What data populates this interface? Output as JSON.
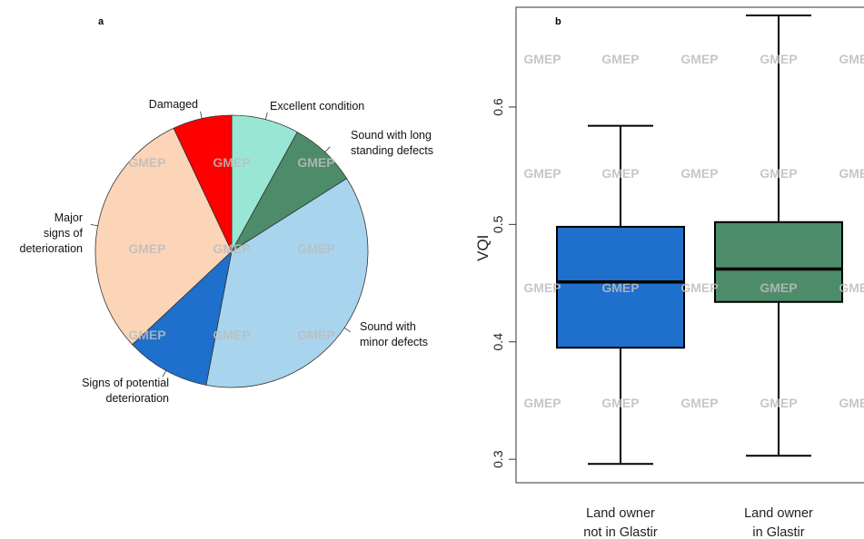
{
  "chart_data": [
    {
      "panel": "a",
      "type": "pie",
      "slices": [
        {
          "label": "Excellent condition",
          "lines": [
            "Excellent condition"
          ],
          "value": 8,
          "color": "#99e6d4"
        },
        {
          "label": "Sound with long standing defects",
          "lines": [
            "Sound with long",
            "standing defects"
          ],
          "value": 8,
          "color": "#4d8c6a"
        },
        {
          "label": "Sound with minor defects",
          "lines": [
            "Sound with",
            "minor defects"
          ],
          "value": 37,
          "color": "#a8d4ee"
        },
        {
          "label": "Signs of potential deterioration",
          "lines": [
            "Signs of potential",
            "deterioration"
          ],
          "value": 10,
          "color": "#1f6fcc"
        },
        {
          "label": "Major signs of deterioration",
          "lines": [
            "Major",
            "signs of",
            "deterioration"
          ],
          "value": 30,
          "color": "#fcd5b8"
        },
        {
          "label": "Damaged",
          "lines": [
            "Damaged"
          ],
          "value": 7,
          "color": "#ff0000"
        }
      ]
    },
    {
      "panel": "b",
      "type": "box",
      "ylabel": "VQI",
      "ylim": [
        0.28,
        0.685
      ],
      "yticks": [
        "0.3",
        "0.4",
        "0.5",
        "0.6"
      ],
      "groups": [
        {
          "label_lines": [
            "Land owner",
            "not in Glastir"
          ],
          "color": "#1f6fcc",
          "min": 0.296,
          "q1": 0.395,
          "median": 0.451,
          "q3": 0.498,
          "max": 0.584
        },
        {
          "label_lines": [
            "Land owner",
            "in Glastir"
          ],
          "color": "#4d8c6a",
          "min": 0.303,
          "q1": 0.434,
          "median": 0.462,
          "q3": 0.502,
          "max": 0.678
        }
      ]
    }
  ],
  "watermark": "GMEP"
}
